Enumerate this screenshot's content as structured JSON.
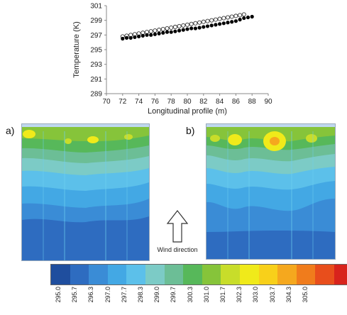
{
  "chart_data": {
    "type": "scatter",
    "xlabel": "Longitudinal profile (m)",
    "ylabel": "Temperature (K)",
    "xlim": [
      70,
      90
    ],
    "ylim": [
      289,
      301
    ],
    "xticks": [
      "70",
      "72",
      "74",
      "76",
      "78",
      "80",
      "82",
      "84",
      "86",
      "88",
      "90"
    ],
    "yticks": [
      "289",
      "291",
      "293",
      "295",
      "297",
      "299",
      "301"
    ],
    "grid": false,
    "series": [
      {
        "marker": "open-circle",
        "color": "#333333",
        "x": [
          72.0,
          72.5,
          73.0,
          73.5,
          74.0,
          74.5,
          75.0,
          75.5,
          76.0,
          76.5,
          77.0,
          77.5,
          78.0,
          78.5,
          79.0,
          79.5,
          80.0,
          80.5,
          81.0,
          81.5,
          82.0,
          82.5,
          83.0,
          83.5,
          84.0,
          84.5,
          85.0,
          85.5,
          86.0,
          86.5,
          87.0
        ],
        "y": [
          296.8,
          296.9,
          297.0,
          297.1,
          297.2,
          297.3,
          297.4,
          297.5,
          297.6,
          297.7,
          297.8,
          297.9,
          298.0,
          298.1,
          298.2,
          298.3,
          298.4,
          298.5,
          298.6,
          298.7,
          298.8,
          298.9,
          299.0,
          299.1,
          299.2,
          299.3,
          299.4,
          299.5,
          299.6,
          299.7,
          299.8
        ]
      },
      {
        "marker": "filled-circle",
        "color": "#000000",
        "x": [
          72.0,
          72.5,
          73.0,
          73.5,
          74.0,
          74.5,
          75.0,
          75.5,
          76.0,
          76.5,
          77.0,
          77.5,
          78.0,
          78.5,
          79.0,
          79.5,
          80.0,
          80.5,
          81.0,
          81.5,
          82.0,
          82.5,
          83.0,
          83.5,
          84.0,
          84.5,
          85.0,
          85.5,
          86.0,
          86.5,
          87.0,
          87.5,
          88.0
        ],
        "y": [
          296.5,
          296.6,
          296.6,
          296.7,
          296.8,
          296.9,
          297.0,
          297.0,
          297.1,
          297.2,
          297.3,
          297.4,
          297.4,
          297.5,
          297.6,
          297.7,
          297.8,
          297.9,
          297.9,
          298.0,
          298.1,
          298.2,
          298.3,
          298.4,
          298.5,
          298.6,
          298.7,
          298.8,
          298.9,
          299.1,
          299.3,
          299.4,
          299.5
        ]
      }
    ]
  },
  "panels": {
    "a_label": "a)",
    "b_label": "b)",
    "wind_label": "Wind direction"
  },
  "colorbar": {
    "colors": [
      "#1f4e9e",
      "#2e6cc0",
      "#3a8cd6",
      "#43a8e4",
      "#5cc0ea",
      "#7ccbc6",
      "#6cbe96",
      "#57b85a",
      "#86c43a",
      "#c8dd2a",
      "#f0ea1a",
      "#f8d01a",
      "#f5a81e",
      "#f07c1c",
      "#e84e1c",
      "#d8231c"
    ],
    "labels": [
      "295.0",
      "295.7",
      "296.3",
      "297.0",
      "297.7",
      "298.3",
      "299.0",
      "299.7",
      "300.3",
      "301.0",
      "301.7",
      "302.3",
      "303.0",
      "303.7",
      "304.3",
      "305.0"
    ]
  }
}
